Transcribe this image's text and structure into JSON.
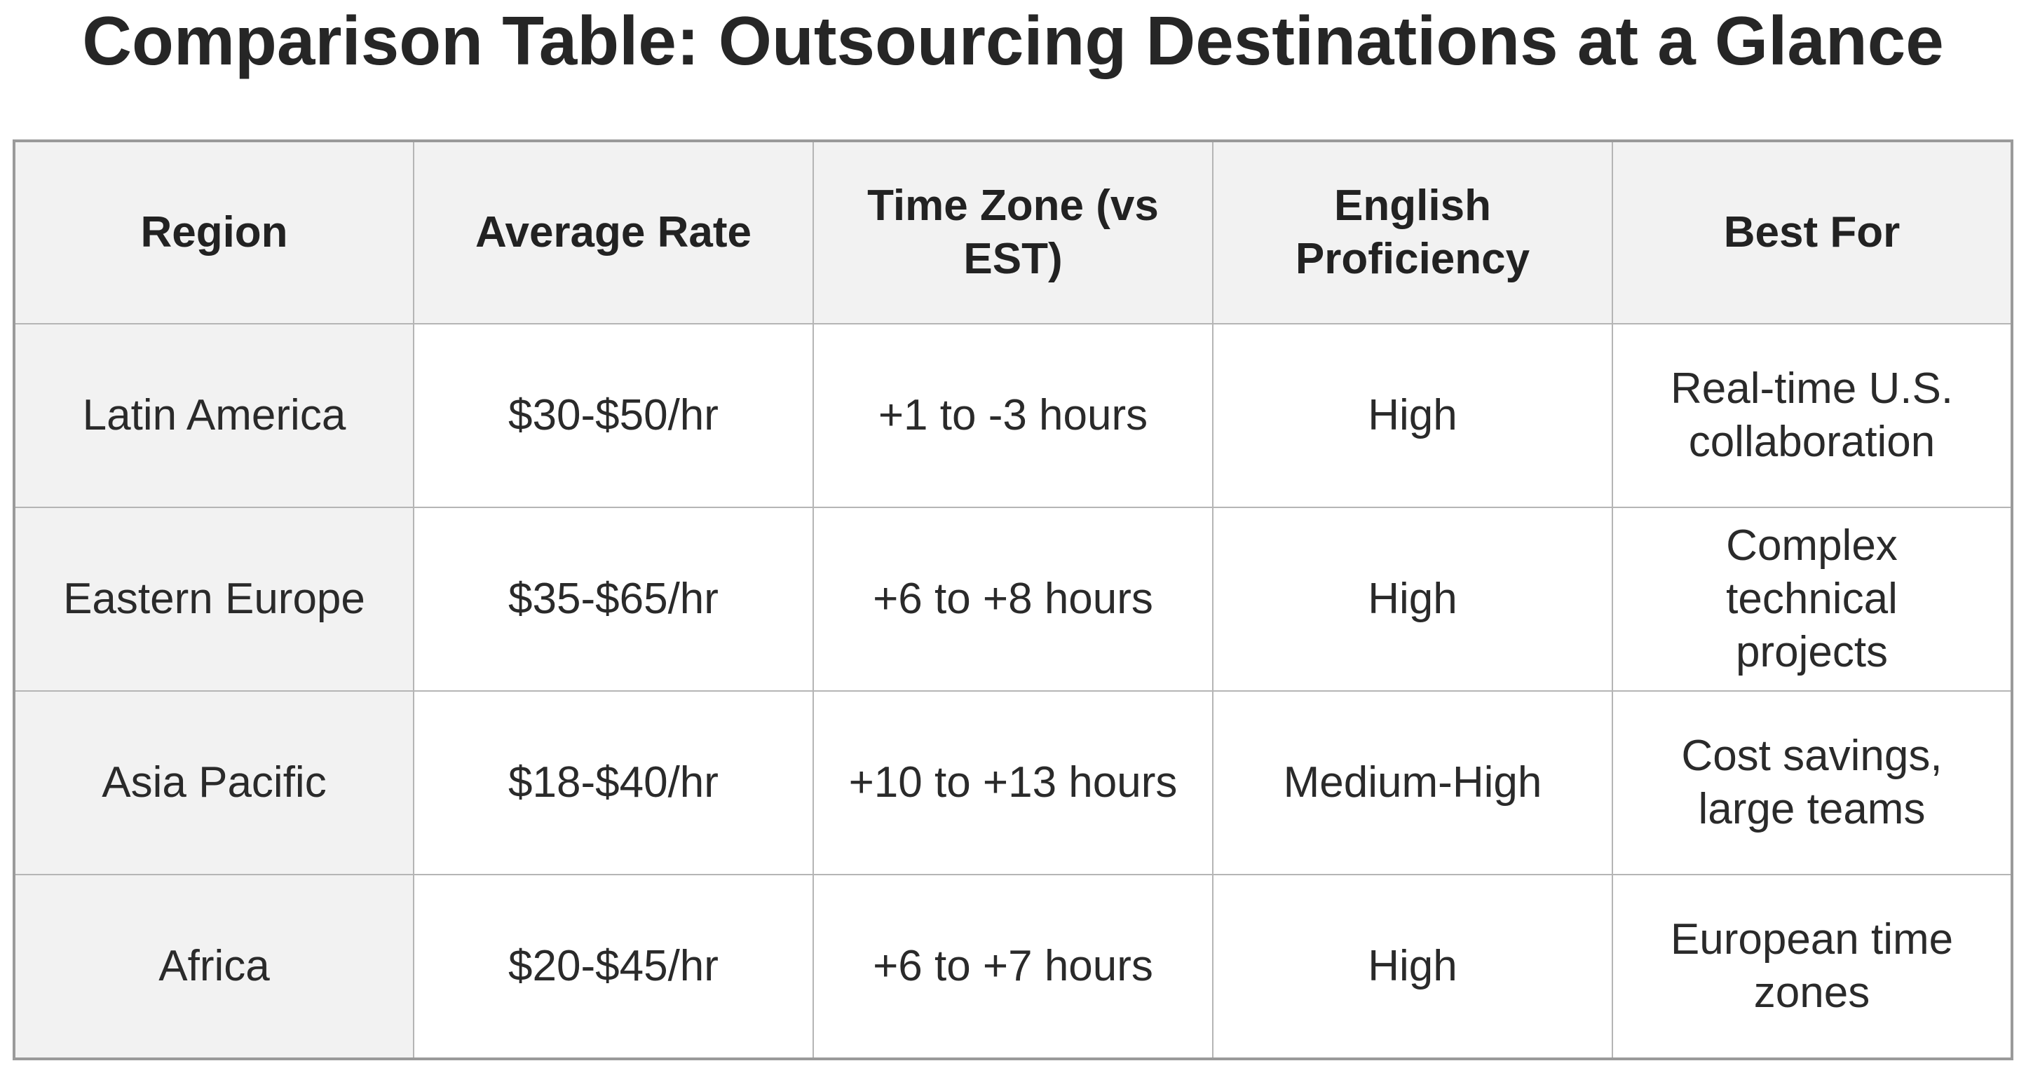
{
  "header": {
    "title": "Comparison Table: Outsourcing Destinations at a Glance"
  },
  "table": {
    "columns": [
      "Region",
      "Average Rate",
      "Time Zone (vs EST)",
      "English Proficiency",
      "Best For"
    ],
    "rows": [
      [
        "Latin America",
        "$30-$50/hr",
        "+1 to -3 hours",
        "High",
        "Real-time U.S. collaboration"
      ],
      [
        "Eastern Europe",
        "$35-$65/hr",
        "+6 to +8 hours",
        "High",
        "Complex technical projects"
      ],
      [
        "Asia Pacific",
        "$18-$40/hr",
        "+10 to +13 hours",
        "Medium-High",
        "Cost savings, large teams"
      ],
      [
        "Africa",
        "$20-$45/hr",
        "+6 to +7 hours",
        "High",
        "European time zones"
      ]
    ]
  }
}
